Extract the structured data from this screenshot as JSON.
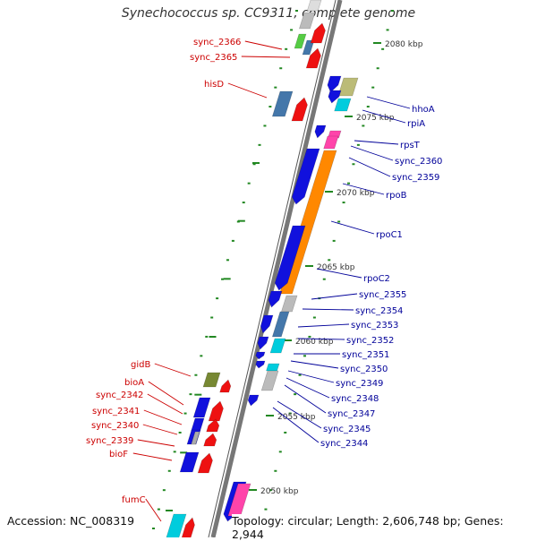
{
  "title": "Synechococcus sp. CC9311, complete genome",
  "footer": {
    "accession": "Accession: NC_008319",
    "topology": "Topology: circular; Length: 2,606,748 bp; Genes: 2,944"
  },
  "colors": {
    "backbone": "#777777",
    "left_label": "#cc0000",
    "right_label": "#000099",
    "tick": "#228822",
    "red": "#ee1111",
    "blue": "#1111dd",
    "orange": "#ff8800",
    "cyan": "#00ccdd",
    "grey": "#bbbbbb",
    "steel": "#4477aa",
    "olive": "#bbbb77",
    "green": "#55cc44",
    "pink": "#ff44aa",
    "khaki": "#778833"
  },
  "scale_labels": [
    "2080 kbp",
    "2075 kbp",
    "2070 kbp",
    "2065 kbp",
    "2060 kbp",
    "2055 kbp",
    "2050 kbp"
  ],
  "left_labels": [
    "sync_2366",
    "sync_2365",
    "hisD",
    "gidB",
    "bioA",
    "sync_2342",
    "sync_2341",
    "sync_2340",
    "sync_2339",
    "bioF",
    "fumC"
  ],
  "right_labels": [
    "hhoA",
    "rpiA",
    "rpsT",
    "sync_2360",
    "sync_2359",
    "rpoB",
    "rpoC1",
    "rpoC2",
    "sync_2355",
    "sync_2354",
    "sync_2353",
    "sync_2352",
    "sync_2351",
    "sync_2350",
    "sync_2349",
    "sync_2348",
    "sync_2347",
    "sync_2345",
    "sync_2344"
  ]
}
